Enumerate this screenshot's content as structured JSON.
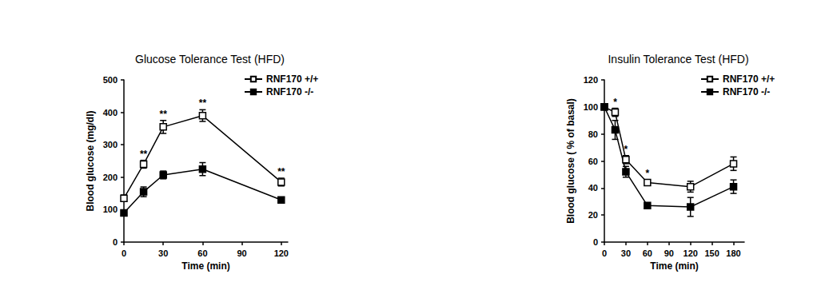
{
  "chart_data": [
    {
      "type": "line",
      "title": "Glucose Tolerance Test (HFD)",
      "x_label": "Time (min)",
      "y_label": "Blood glucose (mg/dl)",
      "x": [
        0,
        15,
        30,
        60,
        120
      ],
      "series": [
        {
          "name": "RNF170 +/+",
          "color": "#000000",
          "marker": "open_square",
          "values": [
            135,
            240,
            355,
            390,
            185
          ],
          "errors": [
            10,
            12,
            20,
            18,
            12
          ]
        },
        {
          "name": "RNF170 -/-",
          "color": "#000000",
          "marker": "square",
          "values": [
            90,
            155,
            207,
            225,
            130
          ],
          "errors": [
            8,
            15,
            12,
            20,
            8
          ]
        }
      ],
      "annotations": [
        {
          "x": 15,
          "text": "**"
        },
        {
          "x": 30,
          "text": "**"
        },
        {
          "x": 60,
          "text": "**"
        },
        {
          "x": 120,
          "text": "**"
        }
      ],
      "xlim": [
        0,
        125
      ],
      "xticks": [
        0,
        30,
        60,
        90,
        120
      ],
      "ylim": [
        0,
        500
      ],
      "yticks": [
        0,
        100,
        200,
        300,
        400,
        500
      ],
      "grid": false,
      "legend": "upper right"
    },
    {
      "type": "line",
      "title": "Insulin Tolerance Test (HFD)",
      "x_label": "Time (min)",
      "y_label": "Blood glucose ( % of basal)",
      "x": [
        0,
        15,
        30,
        60,
        120,
        180
      ],
      "series": [
        {
          "name": "RNF170 +/+",
          "color": "#000000",
          "marker": "open_square",
          "values": [
            100,
            96,
            61,
            44,
            41,
            58
          ],
          "errors": [
            2,
            3,
            3,
            2,
            4,
            5
          ]
        },
        {
          "name": "RNF170 -/-",
          "color": "#000000",
          "marker": "square",
          "values": [
            100,
            83,
            52,
            27,
            26,
            41
          ],
          "errors": [
            2,
            7,
            4,
            2,
            7,
            5
          ]
        }
      ],
      "annotations": [
        {
          "x": 15,
          "text": "*"
        },
        {
          "x": 30,
          "text": "*"
        },
        {
          "x": 60,
          "text": "*"
        }
      ],
      "xlim": [
        0,
        195
      ],
      "xticks": [
        0,
        30,
        60,
        90,
        120,
        150,
        180
      ],
      "ylim": [
        0,
        120
      ],
      "yticks": [
        0,
        20,
        40,
        60,
        80,
        100,
        120
      ],
      "grid": false,
      "legend": "upper right"
    }
  ]
}
